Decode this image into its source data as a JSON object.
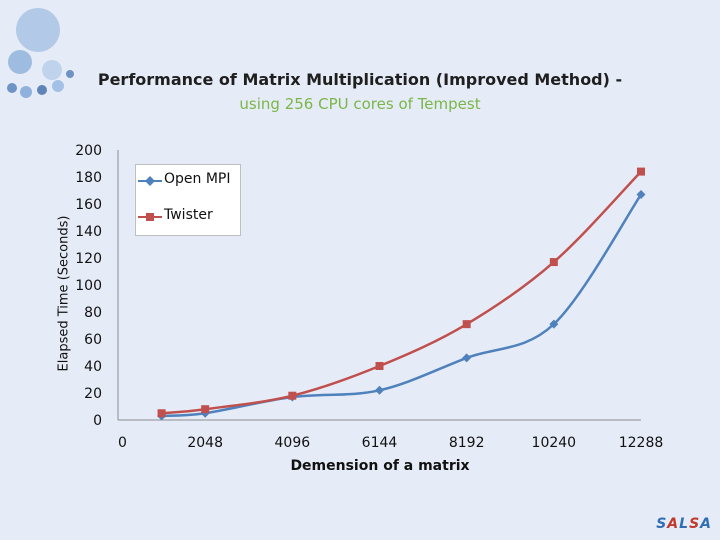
{
  "title_line1": "Performance of Matrix Multiplication (Improved Method) -",
  "title_line2": "using 256 CPU cores of Tempest",
  "title_line2_color": "#7ab648",
  "footer_logo": [
    "S",
    "A",
    "L",
    "S",
    "A"
  ],
  "footer_logo_colors": [
    "#2f6eb5",
    "#c0392b",
    "#2f6eb5",
    "#c0392b",
    "#2f6eb5"
  ],
  "chart_data": {
    "type": "line",
    "xlabel": "Demension of a matrix",
    "ylabel": "Elapsed Time (Seconds)",
    "x_ticks": [
      0,
      2048,
      4096,
      6144,
      8192,
      10240,
      12288
    ],
    "y_ticks": [
      0,
      20,
      40,
      60,
      80,
      100,
      120,
      140,
      160,
      180,
      200
    ],
    "xlim": [
      0,
      12288
    ],
    "ylim": [
      0,
      200
    ],
    "legend_position": "top-left",
    "series": [
      {
        "name": "Open MPI",
        "color": "#4f81bd",
        "marker": "diamond",
        "x": [
          1024,
          2048,
          4096,
          6144,
          8192,
          10240,
          12288
        ],
        "values": [
          3,
          5,
          17,
          22,
          46,
          71,
          167
        ]
      },
      {
        "name": "Twister",
        "color": "#c0504d",
        "marker": "square",
        "x": [
          1024,
          2048,
          4096,
          6144,
          8192,
          10240,
          12288
        ],
        "values": [
          5,
          8,
          18,
          40,
          71,
          117,
          184
        ]
      }
    ]
  }
}
